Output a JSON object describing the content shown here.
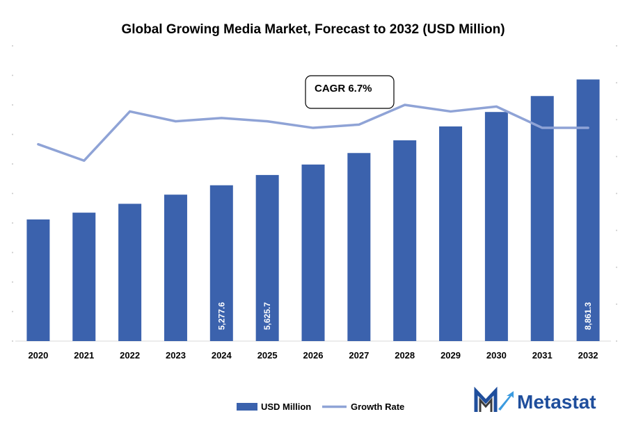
{
  "chart_data": {
    "type": "bar",
    "title": "Global Growing Media Market, Forecast to 2032 (USD Million)",
    "categories": [
      "2020",
      "2021",
      "2022",
      "2023",
      "2024",
      "2025",
      "2026",
      "2027",
      "2028",
      "2029",
      "2030",
      "2031",
      "2032"
    ],
    "series": [
      {
        "name": "USD Million",
        "type": "bar",
        "color": "#3b62ad",
        "values": [
          4120,
          4350,
          4650,
          4960,
          5277.6,
          5625.7,
          5980,
          6370,
          6800,
          7270,
          7760,
          8300,
          8861.3
        ],
        "labels": [
          "",
          "",
          "",
          "",
          "5,277.6",
          "5,625.7",
          "",
          "",
          "",
          "",
          "",
          "",
          "8,861.3"
        ]
      },
      {
        "name": "Growth Rate",
        "type": "line",
        "color": "#8fa3d6",
        "values": [
          6.0,
          5.5,
          7.0,
          6.7,
          6.8,
          6.7,
          6.5,
          6.6,
          7.2,
          7.0,
          7.15,
          6.5,
          6.5
        ]
      }
    ],
    "ylim": [
      0,
      10000
    ],
    "y2lim": [
      0,
      9
    ],
    "gridlines": false,
    "legend_position": "bottom",
    "annotation": "CAGR 6.7%"
  },
  "brand": {
    "name": "Metastat",
    "icon": "metastat-m-logo-icon"
  }
}
